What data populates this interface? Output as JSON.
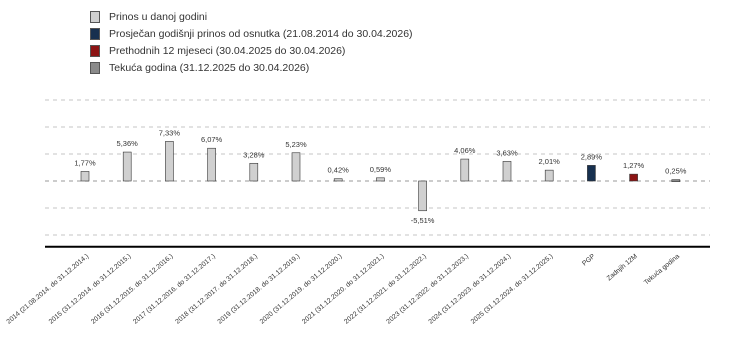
{
  "legend": [
    {
      "label": "Prinos u danoj godini",
      "color": "#d0d0d0"
    },
    {
      "label": "Prosječan godišnji prinos od osnutka (21.08.2014 do 30.04.2026)",
      "color": "#17304f"
    },
    {
      "label": "Prethodnih 12 mjeseci (30.04.2025 do 30.04.2026)",
      "color": "#8c1414"
    },
    {
      "label": "Tekuća godina (31.12.2025 do 30.04.2026)",
      "color": "#8a8a8a"
    }
  ],
  "chart_data": {
    "type": "bar",
    "categories": [
      "2014 (21.08.2014. do 31.12.2014.)",
      "2015 (31.12.2014. do 31.12.2015.)",
      "2016 (31.12.2015. do 31.12.2016.)",
      "2017 (31.12.2016. do 31.12.2017.)",
      "2018 (31.12.2017. do 31.12.2018.)",
      "2019 (31.12.2018. do 31.12.2019.)",
      "2020 (31.12.2019. do 31.12.2020.)",
      "2021 (31.12.2020. do 31.12.2021.)",
      "2022 (31.12.2021. do 31.12.2022.)",
      "2023 (31.12.2022. do 31.12.2023.)",
      "2024 (31.12.2023. do 31.12.2024.)",
      "2025 (31.12.2024. do 31.12.2025.)",
      "PGP",
      "Zadnjih 12M",
      "Tekuća godina"
    ],
    "values": [
      1.77,
      5.36,
      7.33,
      6.07,
      3.28,
      5.23,
      0.42,
      0.59,
      -5.51,
      4.06,
      3.63,
      2.01,
      2.89,
      1.27,
      0.25
    ],
    "labels": [
      "1,77%",
      "5,36%",
      "7,33%",
      "6,07%",
      "3,28%",
      "5,23%",
      "0,42%",
      "0,59%",
      "-5,51%",
      "4,06%",
      "3,63%",
      "2,01%",
      "2,89%",
      "1,27%",
      "0,25%"
    ],
    "series_index": [
      0,
      0,
      0,
      0,
      0,
      0,
      0,
      0,
      0,
      0,
      0,
      0,
      1,
      2,
      3
    ],
    "ylim": [
      -12,
      18
    ],
    "gridlines": [
      -10,
      -5,
      5,
      10,
      15
    ],
    "grid": true,
    "legend_position": "top-left"
  }
}
